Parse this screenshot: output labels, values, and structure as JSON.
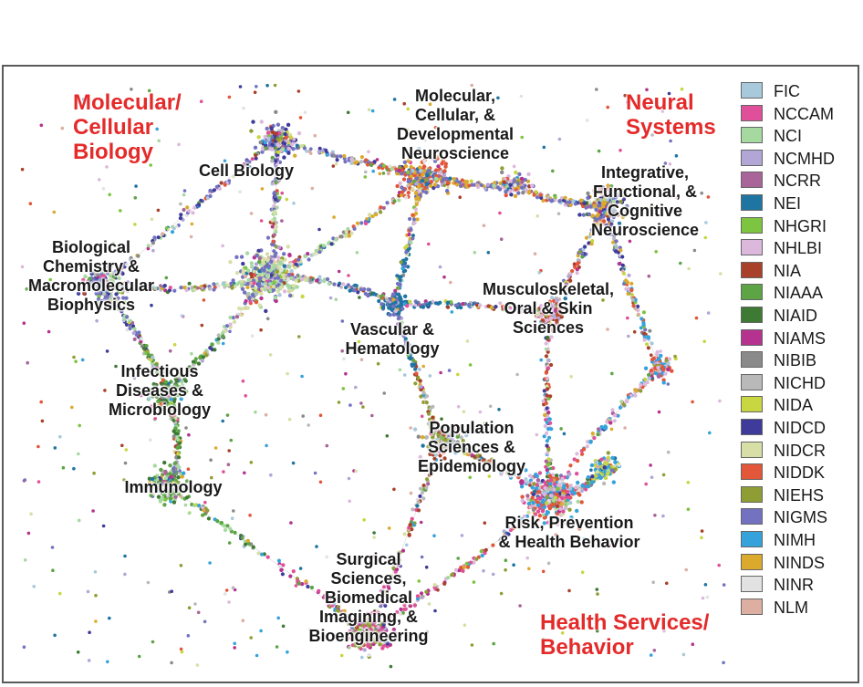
{
  "major_areas": [
    {
      "id": "molecular-cellular-biology",
      "lines": [
        "Molecular/",
        "Cellular",
        "Biology"
      ]
    },
    {
      "id": "neural-systems",
      "lines": [
        "Neural",
        "Systems"
      ]
    },
    {
      "id": "health-services-behavior",
      "lines": [
        "Health Services/",
        "Behavior"
      ]
    }
  ],
  "clusters": [
    {
      "id": "cell-biology",
      "lines": [
        "Cell Biology"
      ]
    },
    {
      "id": "molecular-cellular-developmental-neuroscience",
      "lines": [
        "Molecular,",
        "Cellular, &",
        "Developmental",
        "Neuroscience"
      ]
    },
    {
      "id": "integrative-functional-cognitive-neuroscience",
      "lines": [
        "Integrative,",
        "Functional, &",
        "Cognitive",
        "Neuroscience"
      ]
    },
    {
      "id": "biological-chemistry",
      "lines": [
        "Biological",
        "Chemistry &",
        "Macromolecular",
        "Biophysics"
      ]
    },
    {
      "id": "musculoskeletal",
      "lines": [
        "Musculoskeletal,",
        "Oral & Skin",
        "Sciences"
      ]
    },
    {
      "id": "vascular-hematology",
      "lines": [
        "Vascular &",
        "Hematology"
      ]
    },
    {
      "id": "infectious-diseases",
      "lines": [
        "Infectious",
        "Diseases &",
        "Microbiology"
      ]
    },
    {
      "id": "population-sciences",
      "lines": [
        "Population",
        "Sciences &",
        "Epidemiology"
      ]
    },
    {
      "id": "immunology",
      "lines": [
        "Immunology"
      ]
    },
    {
      "id": "risk-prevention",
      "lines": [
        "Risk, Prevention",
        "& Health Behavior"
      ]
    },
    {
      "id": "surgical-sciences",
      "lines": [
        "Surgical",
        "Sciences,",
        "Biomedical",
        "Imagining, &",
        "Bioengineering"
      ]
    }
  ],
  "legend": [
    {
      "label": "FIC",
      "color": "#a8c8dc"
    },
    {
      "label": "NCCAM",
      "color": "#e0509a"
    },
    {
      "label": "NCI",
      "color": "#a6d9a0"
    },
    {
      "label": "NCMHD",
      "color": "#b2a6d6"
    },
    {
      "label": "NCRR",
      "color": "#a9649a"
    },
    {
      "label": "NEI",
      "color": "#1f75a2"
    },
    {
      "label": "NHGRI",
      "color": "#7dc441"
    },
    {
      "label": "NHLBI",
      "color": "#dcb8dc"
    },
    {
      "label": "NIA",
      "color": "#a9412a"
    },
    {
      "label": "NIAAA",
      "color": "#5da445"
    },
    {
      "label": "NIAID",
      "color": "#3f7a34"
    },
    {
      "label": "NIAMS",
      "color": "#b5338f"
    },
    {
      "label": "NIBIB",
      "color": "#8a8a8a"
    },
    {
      "label": "NICHD",
      "color": "#b9b9b9"
    },
    {
      "label": "NIDA",
      "color": "#c8d642"
    },
    {
      "label": "NIDCD",
      "color": "#3e3b9a"
    },
    {
      "label": "NIDCR",
      "color": "#d7dfa6"
    },
    {
      "label": "NIDDK",
      "color": "#e2573a"
    },
    {
      "label": "NIEHS",
      "color": "#8e9e34"
    },
    {
      "label": "NIGMS",
      "color": "#7272c0"
    },
    {
      "label": "NIMH",
      "color": "#35a2dc"
    },
    {
      "label": "NINDS",
      "color": "#dbaa2c"
    },
    {
      "label": "NINR",
      "color": "#e2e2e2"
    },
    {
      "label": "NLM",
      "color": "#dcafa2"
    }
  ]
}
